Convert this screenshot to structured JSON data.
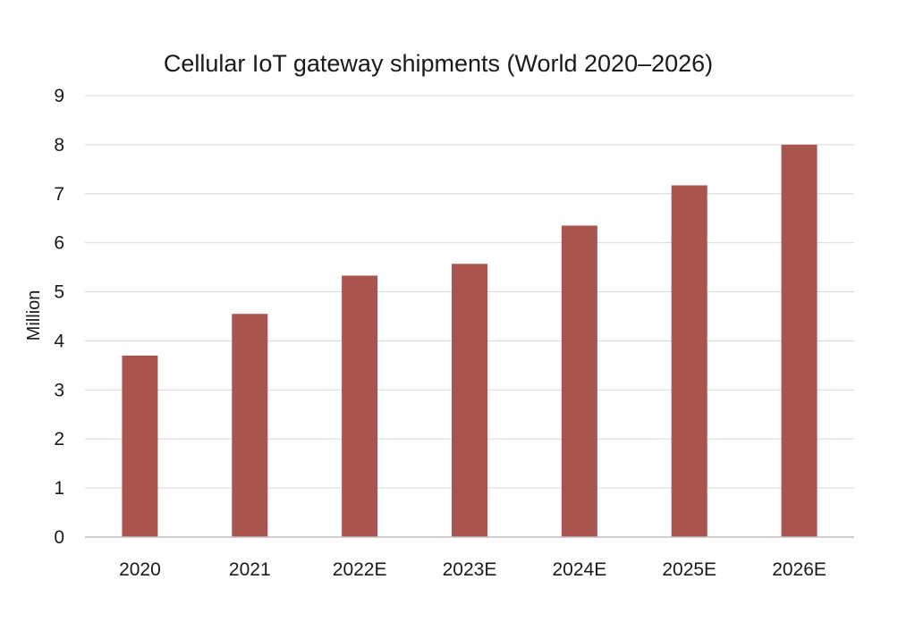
{
  "chart_data": {
    "type": "bar",
    "title": "Cellular IoT gateway shipments (World 2020–2026)",
    "xlabel": "",
    "ylabel": "Million",
    "categories": [
      "2020",
      "2021",
      "2022E",
      "2023E",
      "2024E",
      "2025E",
      "2026E"
    ],
    "values": [
      3.7,
      4.55,
      5.33,
      5.57,
      6.35,
      7.17,
      8.0
    ],
    "ylim": [
      0,
      9
    ],
    "yticks": [
      "0",
      "1",
      "2",
      "3",
      "4",
      "5",
      "6",
      "7",
      "8",
      "9"
    ],
    "grid": true,
    "legend": "none",
    "bar_color": "#a9544e",
    "grid_color": "#d9d9d9",
    "axis_color": "#bfbfbf"
  }
}
